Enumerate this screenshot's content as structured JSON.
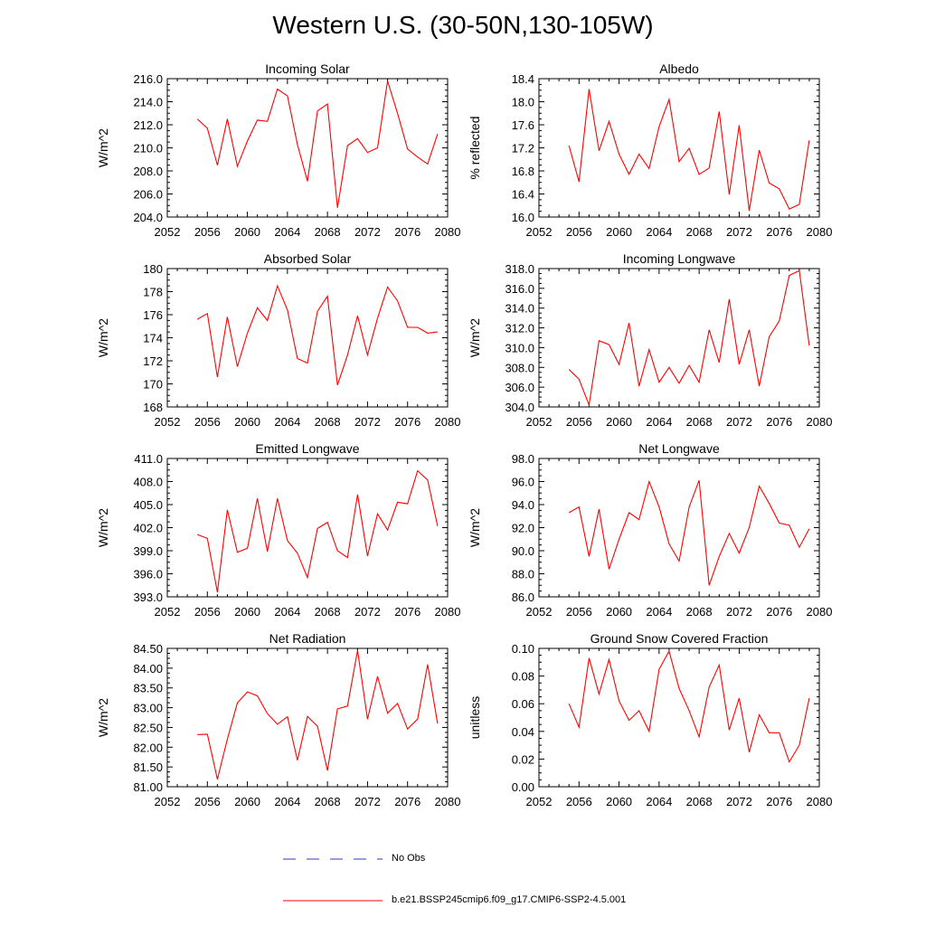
{
  "page": {
    "title": "Western U.S. (30-50N,130-105W)"
  },
  "legend": {
    "items": [
      {
        "label": "No Obs",
        "color": "#3333cc",
        "style": "dashed"
      },
      {
        "label": "b.e21.BSSP245cmip6.f09_g17.CMIP6-SSP2-4.5.001",
        "color": "#ff0000",
        "style": "solid"
      }
    ]
  },
  "chart_data": [
    {
      "type": "line",
      "title": "Incoming Solar",
      "ylabel": "W/m^2",
      "xlim": [
        2052,
        2080
      ],
      "ylim": [
        204.0,
        216.0
      ],
      "xticks": [
        "2052",
        "2056",
        "2060",
        "2064",
        "2068",
        "2072",
        "2076",
        "2080"
      ],
      "yticks": [
        "204.0",
        "206.0",
        "208.0",
        "210.0",
        "212.0",
        "214.0",
        "216.0"
      ],
      "series": [
        {
          "color": "#ff0000",
          "x": [
            2055,
            2056,
            2057,
            2058,
            2059,
            2060,
            2061,
            2062,
            2063,
            2064,
            2065,
            2066,
            2067,
            2068,
            2069,
            2070,
            2071,
            2072,
            2073,
            2074,
            2075,
            2076,
            2077,
            2078,
            2079
          ],
          "values": [
            212.5,
            211.7,
            208.5,
            212.5,
            208.4,
            210.6,
            212.4,
            212.3,
            215.1,
            214.5,
            210.3,
            207.1,
            213.2,
            213.8,
            204.8,
            210.2,
            210.8,
            209.6,
            210.0,
            215.8,
            213.0,
            209.9,
            209.2,
            208.6,
            211.2
          ]
        }
      ]
    },
    {
      "type": "line",
      "title": "Albedo",
      "ylabel": "% reflected",
      "xlim": [
        2052,
        2080
      ],
      "ylim": [
        16.0,
        18.4
      ],
      "xticks": [
        "2052",
        "2056",
        "2060",
        "2064",
        "2068",
        "2072",
        "2076",
        "2080"
      ],
      "yticks": [
        "16.0",
        "16.4",
        "16.8",
        "17.2",
        "17.6",
        "18.0",
        "18.4"
      ],
      "series": [
        {
          "color": "#ff0000",
          "x": [
            2055,
            2056,
            2057,
            2058,
            2059,
            2060,
            2061,
            2062,
            2063,
            2064,
            2065,
            2066,
            2067,
            2068,
            2069,
            2070,
            2071,
            2072,
            2073,
            2074,
            2075,
            2076,
            2077,
            2078,
            2079
          ],
          "values": [
            17.24,
            16.61,
            18.22,
            17.15,
            17.66,
            17.09,
            16.74,
            17.09,
            16.84,
            17.57,
            18.04,
            16.96,
            17.19,
            16.74,
            16.85,
            17.83,
            16.39,
            17.59,
            16.11,
            17.16,
            16.59,
            16.49,
            16.14,
            16.22,
            17.33
          ]
        }
      ]
    },
    {
      "type": "line",
      "title": "Absorbed Solar",
      "ylabel": "W/m^2",
      "xlim": [
        2052,
        2080
      ],
      "ylim": [
        168,
        180
      ],
      "xticks": [
        "2052",
        "2056",
        "2060",
        "2064",
        "2068",
        "2072",
        "2076",
        "2080"
      ],
      "yticks": [
        "168",
        "170",
        "172",
        "174",
        "176",
        "178",
        "180"
      ],
      "series": [
        {
          "color": "#ff0000",
          "x": [
            2055,
            2056,
            2057,
            2058,
            2059,
            2060,
            2061,
            2062,
            2063,
            2064,
            2065,
            2066,
            2067,
            2068,
            2069,
            2070,
            2071,
            2072,
            2073,
            2074,
            2075,
            2076,
            2077,
            2078,
            2079
          ],
          "values": [
            175.6,
            176.1,
            170.6,
            175.8,
            171.5,
            174.4,
            176.6,
            175.5,
            178.5,
            176.4,
            172.2,
            171.8,
            176.3,
            177.6,
            169.9,
            172.5,
            175.9,
            172.5,
            175.7,
            178.4,
            177.2,
            174.9,
            174.9,
            174.4,
            174.5
          ]
        }
      ]
    },
    {
      "type": "line",
      "title": "Incoming Longwave",
      "ylabel": "W/m^2",
      "xlim": [
        2052,
        2080
      ],
      "ylim": [
        304.0,
        318.0
      ],
      "xticks": [
        "2052",
        "2056",
        "2060",
        "2064",
        "2068",
        "2072",
        "2076",
        "2080"
      ],
      "yticks": [
        "304.0",
        "306.0",
        "308.0",
        "310.0",
        "312.0",
        "314.0",
        "316.0",
        "318.0"
      ],
      "series": [
        {
          "color": "#ff0000",
          "x": [
            2055,
            2056,
            2057,
            2058,
            2059,
            2060,
            2061,
            2062,
            2063,
            2064,
            2065,
            2066,
            2067,
            2068,
            2069,
            2070,
            2071,
            2072,
            2073,
            2074,
            2075,
            2076,
            2077,
            2078,
            2079
          ],
          "values": [
            307.8,
            306.8,
            304.2,
            310.7,
            310.3,
            308.3,
            312.5,
            306.1,
            309.8,
            306.5,
            308.0,
            306.4,
            308.2,
            306.5,
            311.8,
            308.5,
            314.9,
            308.3,
            311.8,
            306.1,
            311.1,
            312.7,
            317.3,
            317.8,
            310.2
          ]
        }
      ]
    },
    {
      "type": "line",
      "title": "Emitted Longwave",
      "ylabel": "W/m^2",
      "xlim": [
        2052,
        2080
      ],
      "ylim": [
        393.0,
        411.0
      ],
      "xticks": [
        "2052",
        "2056",
        "2060",
        "2064",
        "2068",
        "2072",
        "2076",
        "2080"
      ],
      "yticks": [
        "393.0",
        "396.0",
        "399.0",
        "402.0",
        "405.0",
        "408.0",
        "411.0"
      ],
      "series": [
        {
          "color": "#ff0000",
          "x": [
            2055,
            2056,
            2057,
            2058,
            2059,
            2060,
            2061,
            2062,
            2063,
            2064,
            2065,
            2066,
            2067,
            2068,
            2069,
            2070,
            2071,
            2072,
            2073,
            2074,
            2075,
            2076,
            2077,
            2078,
            2079
          ],
          "values": [
            401.1,
            400.6,
            393.6,
            404.3,
            398.8,
            399.3,
            405.8,
            398.9,
            405.8,
            400.3,
            398.7,
            395.5,
            401.9,
            402.7,
            399.0,
            398.1,
            406.3,
            398.3,
            403.8,
            401.7,
            405.3,
            405.1,
            409.4,
            408.2,
            402.2
          ]
        }
      ]
    },
    {
      "type": "line",
      "title": "Net Longwave",
      "ylabel": "W/m^2",
      "xlim": [
        2052,
        2080
      ],
      "ylim": [
        86.0,
        98.0
      ],
      "xticks": [
        "2052",
        "2056",
        "2060",
        "2064",
        "2068",
        "2072",
        "2076",
        "2080"
      ],
      "yticks": [
        "86.0",
        "88.0",
        "90.0",
        "92.0",
        "94.0",
        "96.0",
        "98.0"
      ],
      "series": [
        {
          "color": "#ff0000",
          "x": [
            2055,
            2056,
            2057,
            2058,
            2059,
            2060,
            2061,
            2062,
            2063,
            2064,
            2065,
            2066,
            2067,
            2068,
            2069,
            2070,
            2071,
            2072,
            2073,
            2074,
            2075,
            2076,
            2077,
            2078,
            2079
          ],
          "values": [
            93.3,
            93.8,
            89.5,
            93.6,
            88.4,
            91.0,
            93.3,
            92.7,
            96.0,
            93.8,
            90.6,
            89.1,
            93.8,
            96.1,
            87.0,
            89.5,
            91.5,
            89.8,
            92.0,
            95.6,
            94.1,
            92.4,
            92.2,
            90.3,
            91.9
          ]
        }
      ]
    },
    {
      "type": "line",
      "title": "Net Radiation",
      "ylabel": "W/m^2",
      "xlim": [
        2052,
        2080
      ],
      "ylim": [
        81.0,
        84.5
      ],
      "xticks": [
        "2052",
        "2056",
        "2060",
        "2064",
        "2068",
        "2072",
        "2076",
        "2080"
      ],
      "yticks": [
        "81.00",
        "81.50",
        "82.00",
        "82.50",
        "83.00",
        "83.50",
        "84.00",
        "84.50"
      ],
      "series": [
        {
          "color": "#ff0000",
          "x": [
            2055,
            2056,
            2057,
            2058,
            2059,
            2060,
            2061,
            2062,
            2063,
            2064,
            2065,
            2066,
            2067,
            2068,
            2069,
            2070,
            2071,
            2072,
            2073,
            2074,
            2075,
            2076,
            2077,
            2078,
            2079
          ],
          "values": [
            82.32,
            82.33,
            81.19,
            82.2,
            83.12,
            83.4,
            83.3,
            82.85,
            82.58,
            82.77,
            81.67,
            82.78,
            82.53,
            81.41,
            82.97,
            83.04,
            84.45,
            82.71,
            83.79,
            82.86,
            83.11,
            82.46,
            82.71,
            84.09,
            82.6
          ]
        }
      ]
    },
    {
      "type": "line",
      "title": "Ground Snow Covered Fraction",
      "ylabel": "unitless",
      "xlim": [
        2052,
        2080
      ],
      "ylim": [
        0.0,
        0.1
      ],
      "xticks": [
        "2052",
        "2056",
        "2060",
        "2064",
        "2068",
        "2072",
        "2076",
        "2080"
      ],
      "yticks": [
        "0.00",
        "0.02",
        "0.04",
        "0.06",
        "0.08",
        "0.10"
      ],
      "series": [
        {
          "color": "#ff0000",
          "x": [
            2055,
            2056,
            2057,
            2058,
            2059,
            2060,
            2061,
            2062,
            2063,
            2064,
            2065,
            2066,
            2067,
            2068,
            2069,
            2070,
            2071,
            2072,
            2073,
            2074,
            2075,
            2076,
            2077,
            2078,
            2079
          ],
          "values": [
            0.06,
            0.043,
            0.093,
            0.067,
            0.092,
            0.062,
            0.048,
            0.055,
            0.04,
            0.085,
            0.098,
            0.071,
            0.055,
            0.036,
            0.072,
            0.088,
            0.041,
            0.064,
            0.025,
            0.052,
            0.039,
            0.039,
            0.018,
            0.03,
            0.064
          ]
        }
      ]
    }
  ]
}
